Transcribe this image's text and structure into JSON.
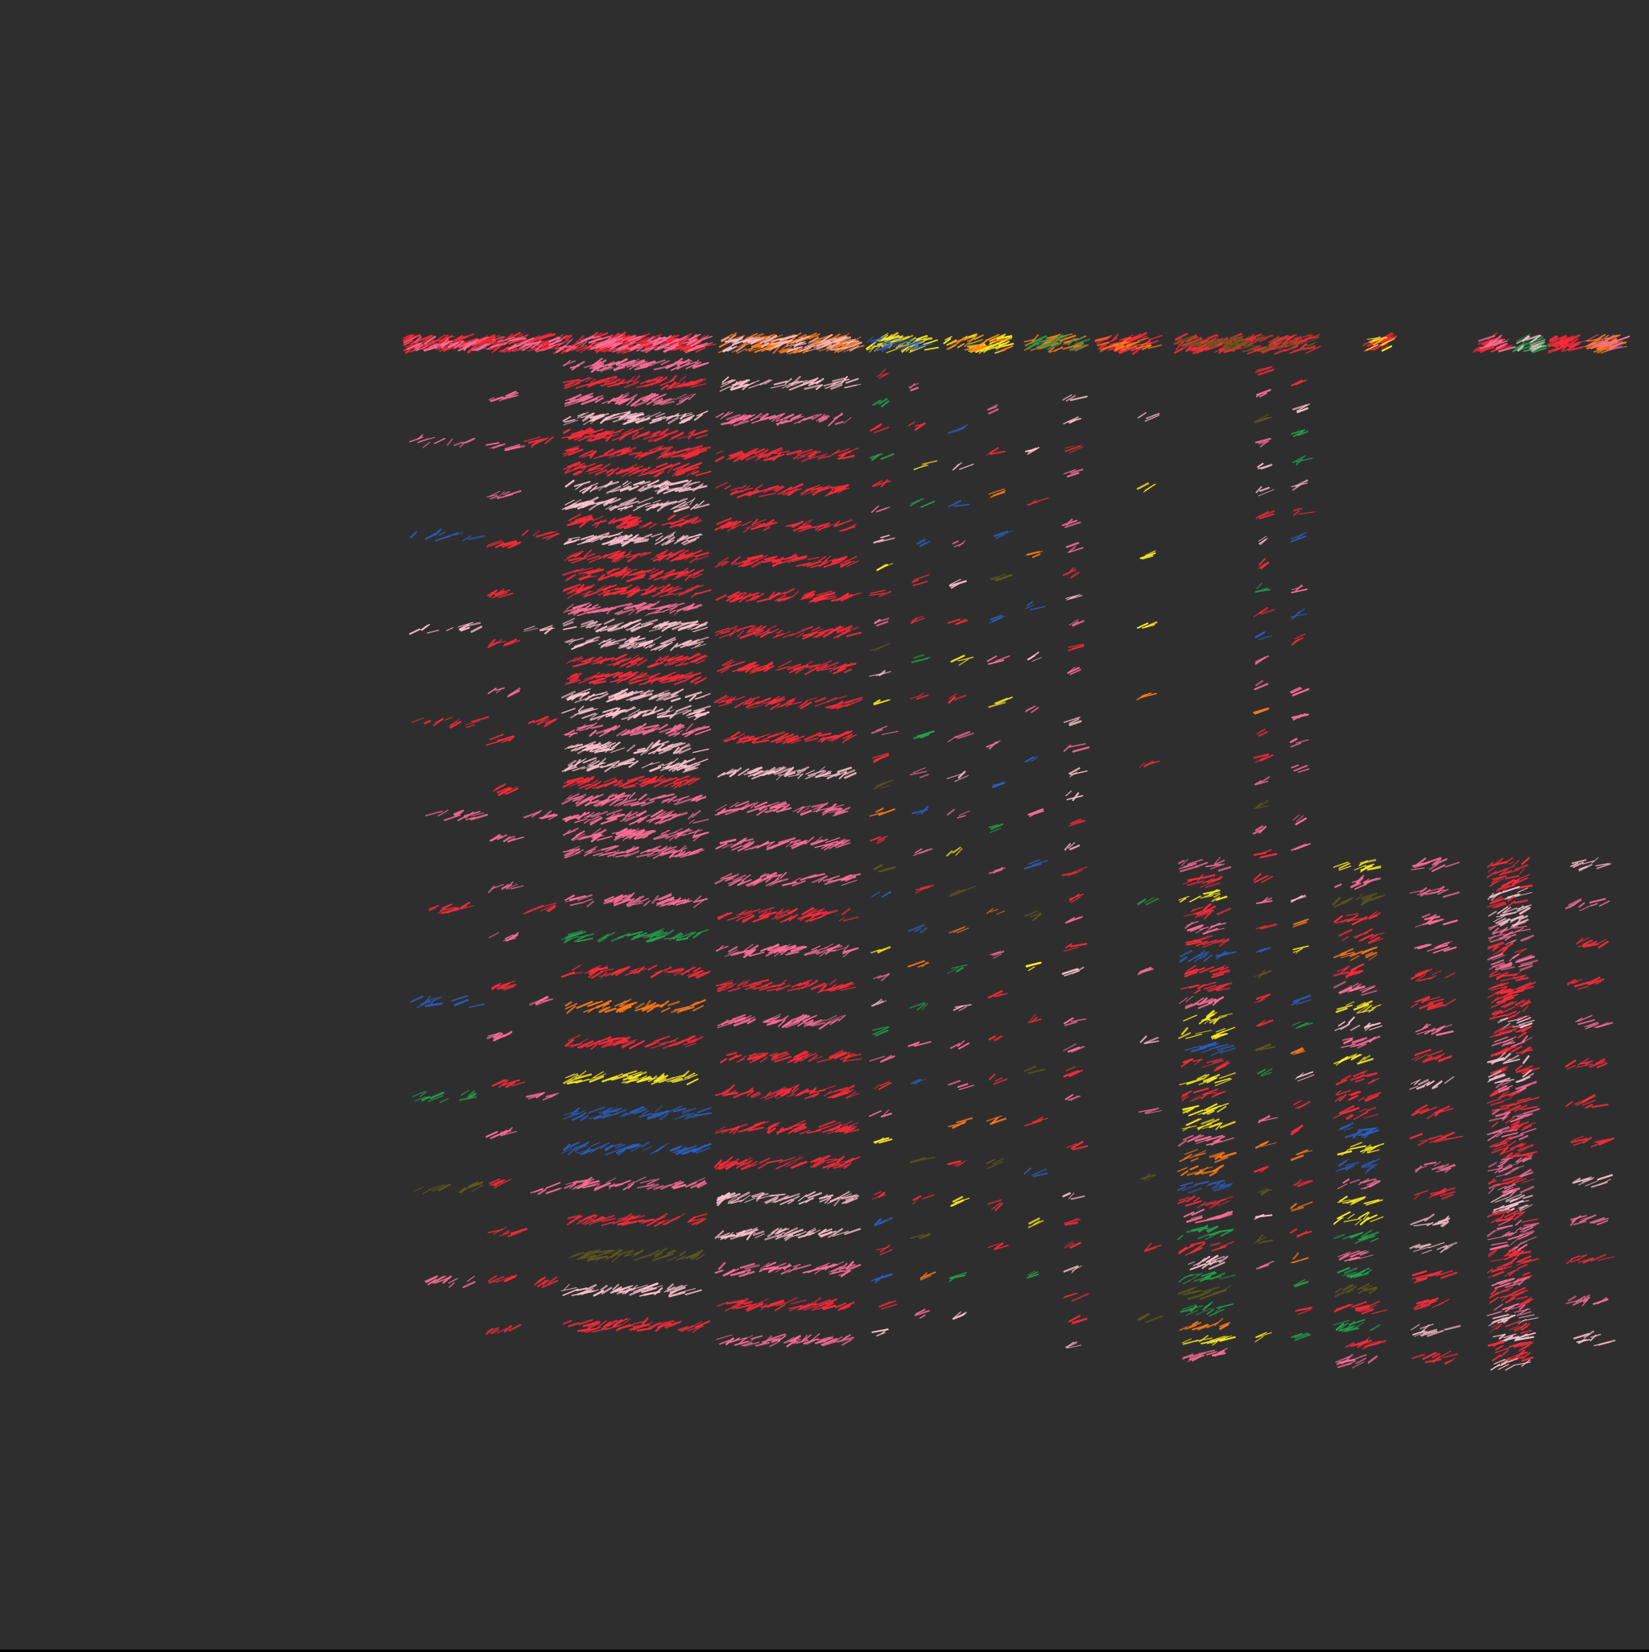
{
  "background_color": "#2f2e2f",
  "bottom_edge_color": "#000000",
  "palette": {
    "red": "#ff2a3a",
    "pink": "#ff6f9a",
    "light_pink": "#ffc3cf",
    "orange": "#ff7a1a",
    "yellow": "#ffee22",
    "green": "#22a34a",
    "dark_green": "#5d5a1c",
    "blue": "#2a5fc0",
    "dark_red": "#b81c28"
  },
  "visible_text": []
}
